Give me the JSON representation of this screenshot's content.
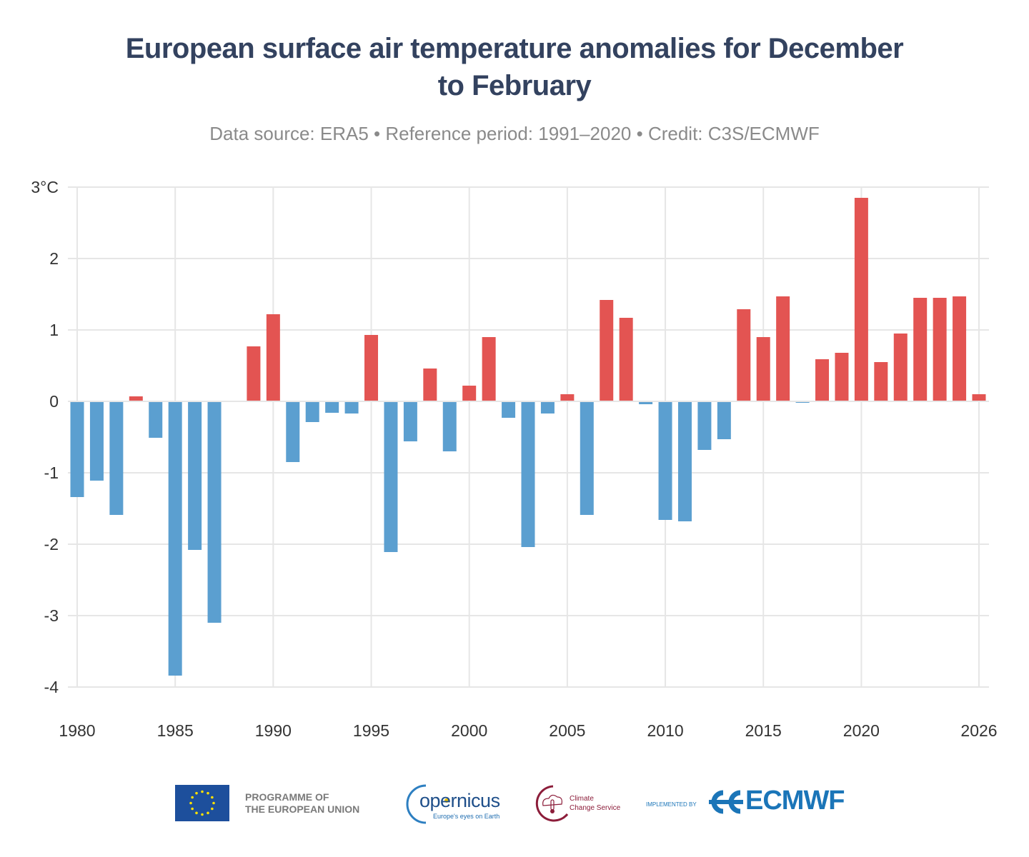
{
  "header": {
    "title_line1": "European surface air temperature anomalies for December",
    "title_line2": "to February",
    "subtitle": "Data source: ERA5 • Reference period: 1991–2020 • Credit: C3S/ECMWF"
  },
  "colors": {
    "positive": "#e35452",
    "negative": "#5b9fd0",
    "grid": "#e6e6e6",
    "title": "#33425f",
    "subtitle": "#8a8a8a"
  },
  "chart_data": {
    "type": "bar",
    "title": "European surface air temperature anomalies for December to February",
    "subtitle": "Data source: ERA5 • Reference period: 1991–2020 • Credit: C3S/ECMWF",
    "xlabel": "",
    "ylabel": "°C",
    "ylim": [
      -4,
      3
    ],
    "xlim": [
      1980,
      2026
    ],
    "grid": true,
    "legend": "none",
    "yticks": [
      {
        "value": 3,
        "label": "3°C"
      },
      {
        "value": 2,
        "label": "2"
      },
      {
        "value": 1,
        "label": "1"
      },
      {
        "value": 0,
        "label": "0"
      },
      {
        "value": -1,
        "label": "-1"
      },
      {
        "value": -2,
        "label": "-2"
      },
      {
        "value": -3,
        "label": "-3"
      },
      {
        "value": -4,
        "label": "-4"
      }
    ],
    "xticks": [
      {
        "value": 1980,
        "label": "1980"
      },
      {
        "value": 1985,
        "label": "1985"
      },
      {
        "value": 1990,
        "label": "1990"
      },
      {
        "value": 1995,
        "label": "1995"
      },
      {
        "value": 2000,
        "label": "2000"
      },
      {
        "value": 2005,
        "label": "2005"
      },
      {
        "value": 2010,
        "label": "2010"
      },
      {
        "value": 2015,
        "label": "2015"
      },
      {
        "value": 2020,
        "label": "2020"
      },
      {
        "value": 2026,
        "label": "2026"
      }
    ],
    "categories": [
      1980,
      1981,
      1982,
      1983,
      1984,
      1985,
      1986,
      1987,
      1988,
      1989,
      1990,
      1991,
      1992,
      1993,
      1994,
      1995,
      1996,
      1997,
      1998,
      1999,
      2000,
      2001,
      2002,
      2003,
      2004,
      2005,
      2006,
      2007,
      2008,
      2009,
      2010,
      2011,
      2012,
      2013,
      2014,
      2015,
      2016,
      2017,
      2018,
      2019,
      2020,
      2021,
      2022,
      2023,
      2024,
      2025,
      2026
    ],
    "values": [
      -1.34,
      -1.11,
      -1.59,
      0.07,
      -0.51,
      -3.84,
      -2.08,
      -3.1,
      0.0,
      0.77,
      1.22,
      -0.85,
      -0.29,
      -0.16,
      -0.17,
      0.93,
      -2.11,
      -0.56,
      0.46,
      -0.7,
      0.22,
      0.9,
      -0.23,
      -2.04,
      -0.17,
      0.1,
      -1.59,
      1.42,
      1.17,
      -0.04,
      -1.66,
      -1.68,
      -0.68,
      -0.53,
      1.29,
      0.9,
      1.47,
      -0.02,
      0.59,
      0.68,
      2.85,
      0.55,
      0.95,
      1.45,
      1.45,
      1.47,
      0.1
    ]
  },
  "footer": {
    "eu_line1": "PROGRAMME OF",
    "eu_line2": "THE EUROPEAN UNION",
    "copernicus": "opernicus",
    "copernicus_c": "C",
    "copernicus_tagline": "Europe's eyes on Earth",
    "c3s_line1": "Climate",
    "c3s_line2": "Change Service",
    "implemented_by": "IMPLEMENTED BY",
    "ecmwf": "ECMWF"
  }
}
